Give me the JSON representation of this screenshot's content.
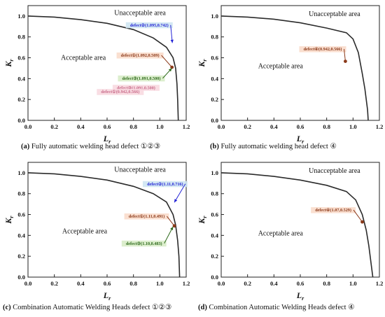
{
  "colors": {
    "curve": "#2b2b2b",
    "axis": "#222222",
    "blue": "#2323d6",
    "brown": "#8b3a1a",
    "green": "#2f6b1c",
    "pink": "#f2b8c8",
    "pink_text": "#c86b8a",
    "light_blue": "#cfe6f2",
    "light_pink": "#f8d9e0",
    "light_green": "#d8ecc8",
    "light_orange": "#f9dccb"
  },
  "chart_data": [
    {
      "id": "a",
      "type": "line",
      "caption": {
        "label": "(a)",
        "text": " Fully automatic welding head defect ①②③"
      },
      "xlabel": "L",
      "xlabel_sub": "r",
      "ylabel": "K",
      "ylabel_sub": "r",
      "xlim": [
        0,
        1.2
      ],
      "ylim": [
        0,
        1.1
      ],
      "xticks": [
        "0.0",
        "0.2",
        "0.4",
        "0.6",
        "0.8",
        "1.0",
        "1.2"
      ],
      "yticks": [
        "0.0",
        "0.2",
        "0.4",
        "0.6",
        "0.8",
        "1.0"
      ],
      "curve": [
        [
          0,
          1.0
        ],
        [
          0.2,
          0.99
        ],
        [
          0.4,
          0.965
        ],
        [
          0.6,
          0.93
        ],
        [
          0.8,
          0.87
        ],
        [
          0.95,
          0.79
        ],
        [
          1.05,
          0.7
        ],
        [
          1.1,
          0.6
        ],
        [
          1.12,
          0.5
        ],
        [
          1.13,
          0.35
        ],
        [
          1.135,
          0.2
        ],
        [
          1.14,
          0.0
        ]
      ],
      "area_labels": [
        {
          "text": "Unacceptable area",
          "x": 0.85,
          "y": 1.01
        },
        {
          "text": "Acceptable area",
          "x": 0.42,
          "y": 0.58
        }
      ],
      "points": [
        {
          "label": "defect②(1.095,0.742)",
          "x": 1.095,
          "y": 0.742,
          "lx": 0.92,
          "ly": 0.9,
          "color": "blue",
          "bg": "light_blue",
          "marker": "arrow"
        },
        {
          "label": "defect①(1.092,0.509)",
          "x": 1.092,
          "y": 0.509,
          "lx": 0.85,
          "ly": 0.61,
          "color": "brown",
          "bg": "light_orange",
          "marker": "dot"
        },
        {
          "label": "defect③(1.091,0.500)",
          "x": 1.091,
          "y": 0.5,
          "lx": 0.86,
          "ly": 0.39,
          "color": "green",
          "bg": "light_green",
          "marker": "arrow"
        },
        {
          "label": "defect③(1.091,0.500)",
          "x": 1.091,
          "y": 0.5,
          "lx": 0.82,
          "ly": 0.3,
          "color": "pink",
          "bg": "light_pink",
          "marker": "none"
        },
        {
          "label": "defect①(0.942,0.566)",
          "x": 0.942,
          "y": 0.566,
          "lx": 0.7,
          "ly": 0.26,
          "color": "pink",
          "bg": "light_pink",
          "marker": "none"
        }
      ]
    },
    {
      "id": "b",
      "type": "line",
      "caption": {
        "label": "(b)",
        "text": " Fully automatic welding head defect ④"
      },
      "xlabel": "L",
      "xlabel_sub": "r",
      "ylabel": "K",
      "ylabel_sub": "r",
      "xlim": [
        0,
        1.2
      ],
      "ylim": [
        0,
        1.1
      ],
      "xticks": [
        "0.0",
        "0.2",
        "0.4",
        "0.6",
        "0.8",
        "1.0",
        "1.2"
      ],
      "yticks": [
        "0.0",
        "0.2",
        "0.4",
        "0.6",
        "0.8",
        "1.0"
      ],
      "curve": [
        [
          0,
          1.0
        ],
        [
          0.2,
          0.99
        ],
        [
          0.4,
          0.97
        ],
        [
          0.6,
          0.935
        ],
        [
          0.8,
          0.885
        ],
        [
          0.95,
          0.84
        ],
        [
          1.0,
          0.78
        ],
        [
          1.04,
          0.65
        ],
        [
          1.07,
          0.45
        ],
        [
          1.09,
          0.3
        ],
        [
          1.11,
          0.1
        ],
        [
          1.115,
          0.0
        ]
      ],
      "area_labels": [
        {
          "text": "Unacceptable area",
          "x": 0.86,
          "y": 1.0
        },
        {
          "text": "Acceptable area",
          "x": 0.45,
          "y": 0.5
        }
      ],
      "points": [
        {
          "label": "defect④(0.942,0.566)",
          "x": 0.942,
          "y": 0.566,
          "lx": 0.77,
          "ly": 0.67,
          "color": "brown",
          "bg": "light_orange",
          "marker": "dot"
        }
      ]
    },
    {
      "id": "c",
      "type": "line",
      "caption": {
        "label": "(c)",
        "text": " Combination Automatic Welding Heads defect ①②③"
      },
      "xlabel": "L",
      "xlabel_sub": "r",
      "ylabel": "K",
      "ylabel_sub": "r",
      "xlim": [
        0,
        1.2
      ],
      "ylim": [
        0,
        1.1
      ],
      "xticks": [
        "0.0",
        "0.2",
        "0.4",
        "0.6",
        "0.8",
        "1.0",
        "1.2"
      ],
      "yticks": [
        "0.0",
        "0.2",
        "0.4",
        "0.6",
        "0.8",
        "1.0"
      ],
      "curve": [
        [
          0,
          1.0
        ],
        [
          0.2,
          0.99
        ],
        [
          0.4,
          0.965
        ],
        [
          0.6,
          0.93
        ],
        [
          0.8,
          0.87
        ],
        [
          0.95,
          0.8
        ],
        [
          1.05,
          0.72
        ],
        [
          1.1,
          0.6
        ],
        [
          1.12,
          0.5
        ],
        [
          1.135,
          0.35
        ],
        [
          1.145,
          0.2
        ],
        [
          1.15,
          0.0
        ]
      ],
      "area_labels": [
        {
          "text": "Unacceptable area",
          "x": 0.85,
          "y": 1.01
        },
        {
          "text": "Acceptable area",
          "x": 0.43,
          "y": 0.42
        }
      ],
      "points": [
        {
          "label": "defect②(1.11,0.716)",
          "x": 1.11,
          "y": 0.716,
          "lx": 1.04,
          "ly": 0.88,
          "color": "blue",
          "bg": "light_blue",
          "marker": "arrow"
        },
        {
          "label": "defect①(1.11,0.491)",
          "x": 1.11,
          "y": 0.491,
          "lx": 0.9,
          "ly": 0.57,
          "color": "brown",
          "bg": "light_orange",
          "marker": "dot"
        },
        {
          "label": "defect③(1.10,0.483)",
          "x": 1.1,
          "y": 0.483,
          "lx": 0.88,
          "ly": 0.31,
          "color": "green",
          "bg": "light_green",
          "marker": "arrow"
        }
      ]
    },
    {
      "id": "d",
      "type": "line",
      "caption": {
        "label": "(d)",
        "text": " Combination Automatic Welding Heads defect ④"
      },
      "xlabel": "L",
      "xlabel_sub": "r",
      "ylabel": "K",
      "ylabel_sub": "r",
      "xlim": [
        0,
        1.2
      ],
      "ylim": [
        0,
        1.1
      ],
      "xticks": [
        "0.0",
        "0.2",
        "0.4",
        "0.6",
        "0.8",
        "1.0",
        "1.2"
      ],
      "yticks": [
        "0.0",
        "0.2",
        "0.4",
        "0.6",
        "0.8",
        "1.0"
      ],
      "curve": [
        [
          0,
          1.0
        ],
        [
          0.2,
          0.99
        ],
        [
          0.4,
          0.965
        ],
        [
          0.6,
          0.93
        ],
        [
          0.8,
          0.88
        ],
        [
          0.95,
          0.82
        ],
        [
          1.02,
          0.74
        ],
        [
          1.07,
          0.6
        ],
        [
          1.1,
          0.45
        ],
        [
          1.12,
          0.3
        ],
        [
          1.14,
          0.1
        ],
        [
          1.15,
          0.0
        ]
      ],
      "area_labels": [
        {
          "text": "Unacceptable area",
          "x": 0.86,
          "y": 1.0
        },
        {
          "text": "Acceptable area",
          "x": 0.45,
          "y": 0.4
        }
      ],
      "points": [
        {
          "label": "defect④(1.07,0.529)",
          "x": 1.07,
          "y": 0.529,
          "lx": 0.85,
          "ly": 0.63,
          "color": "brown",
          "bg": "light_orange",
          "marker": "dot"
        }
      ]
    }
  ]
}
